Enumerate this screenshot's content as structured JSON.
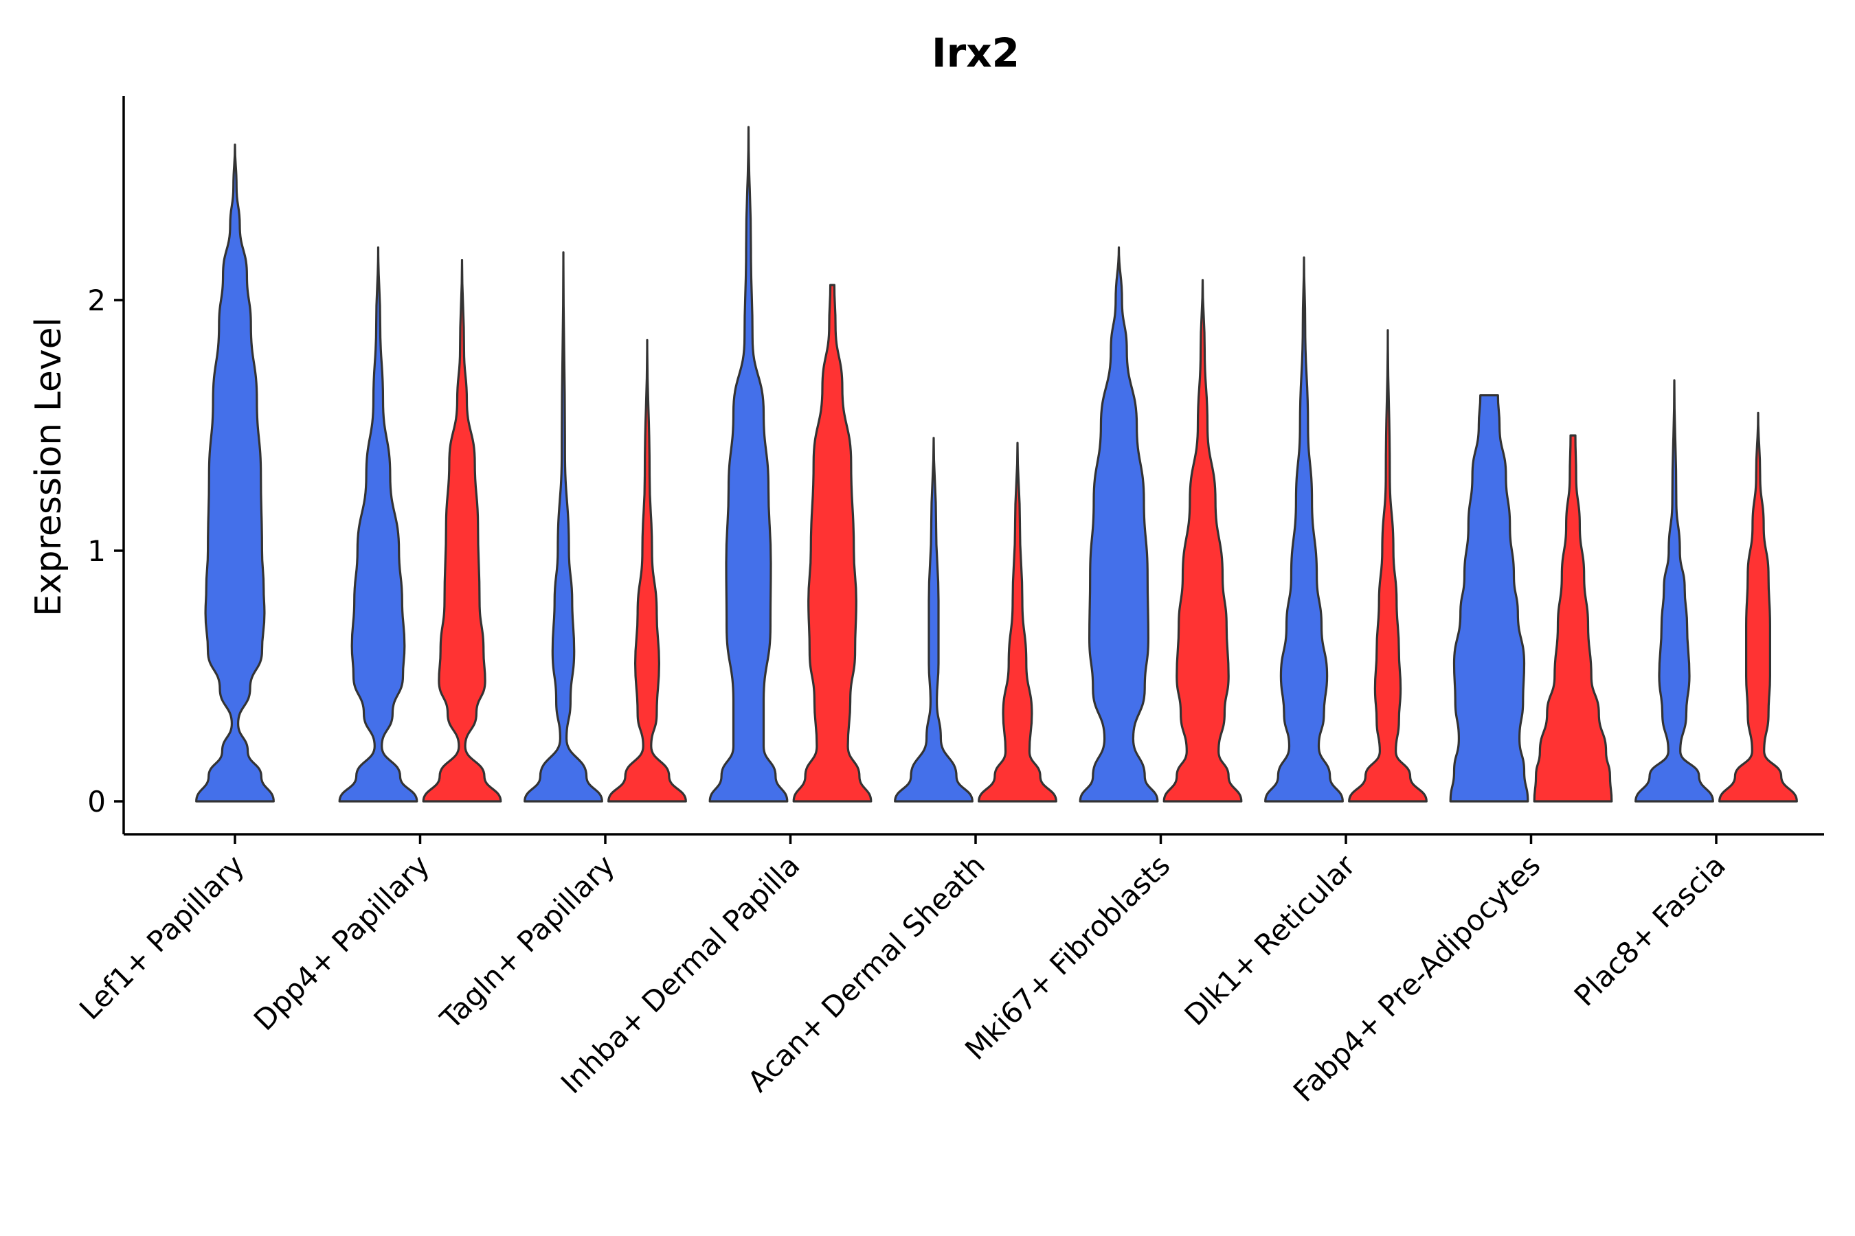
{
  "chart_data": {
    "type": "violin",
    "title": "Irx2",
    "xlabel": "",
    "ylabel": "Expression Level",
    "ylim": [
      -0.14,
      2.8
    ],
    "yticks": [
      0,
      1,
      2
    ],
    "colors": {
      "group1": "#4470ea",
      "group2": "#ff3333",
      "outline": "#333333"
    },
    "categories": [
      {
        "label": "Lef1+ Papillary",
        "violins": [
          {
            "group": "group1",
            "max": 2.62,
            "profile": [
              [
                0,
                0.97
              ],
              [
                0.1,
                0.66
              ],
              [
                0.2,
                0.32
              ],
              [
                0.31,
                0.08
              ],
              [
                0.45,
                0.38
              ],
              [
                0.6,
                0.68
              ],
              [
                0.75,
                0.74
              ],
              [
                0.85,
                0.72
              ],
              [
                1.0,
                0.68
              ],
              [
                1.3,
                0.65
              ],
              [
                1.6,
                0.55
              ],
              [
                1.9,
                0.4
              ],
              [
                2.1,
                0.3
              ],
              [
                2.3,
                0.12
              ],
              [
                2.45,
                0.04
              ],
              [
                2.62,
                0.0
              ]
            ]
          }
        ]
      },
      {
        "label": "Dpp4+ Papillary",
        "violins": [
          {
            "group": "group1",
            "max": 2.21,
            "profile": [
              [
                0,
                0.97
              ],
              [
                0.1,
                0.55
              ],
              [
                0.22,
                0.09
              ],
              [
                0.35,
                0.36
              ],
              [
                0.5,
                0.62
              ],
              [
                0.62,
                0.66
              ],
              [
                0.8,
                0.6
              ],
              [
                1.0,
                0.52
              ],
              [
                1.3,
                0.3
              ],
              [
                1.6,
                0.12
              ],
              [
                1.9,
                0.05
              ],
              [
                2.21,
                0.0
              ]
            ]
          },
          {
            "group": "group2",
            "max": 2.16,
            "profile": [
              [
                0,
                0.97
              ],
              [
                0.1,
                0.56
              ],
              [
                0.22,
                0.08
              ],
              [
                0.35,
                0.36
              ],
              [
                0.48,
                0.58
              ],
              [
                0.6,
                0.54
              ],
              [
                0.8,
                0.44
              ],
              [
                1.1,
                0.4
              ],
              [
                1.35,
                0.32
              ],
              [
                1.6,
                0.12
              ],
              [
                1.8,
                0.05
              ],
              [
                2.16,
                0.0
              ]
            ]
          }
        ]
      },
      {
        "label": "Tagln+ Papillary",
        "violins": [
          {
            "group": "group1",
            "max": 2.19,
            "profile": [
              [
                0,
                0.97
              ],
              [
                0.1,
                0.58
              ],
              [
                0.25,
                0.08
              ],
              [
                0.4,
                0.18
              ],
              [
                0.6,
                0.27
              ],
              [
                0.8,
                0.22
              ],
              [
                1.0,
                0.14
              ],
              [
                1.4,
                0.04
              ],
              [
                2.19,
                0.0
              ]
            ]
          },
          {
            "group": "group2",
            "max": 1.84,
            "profile": [
              [
                0,
                0.97
              ],
              [
                0.1,
                0.55
              ],
              [
                0.22,
                0.1
              ],
              [
                0.35,
                0.24
              ],
              [
                0.55,
                0.3
              ],
              [
                0.75,
                0.24
              ],
              [
                1.0,
                0.12
              ],
              [
                1.3,
                0.06
              ],
              [
                1.84,
                0.0
              ]
            ]
          }
        ]
      },
      {
        "label": "Inhba+ Dermal Papilla",
        "violins": [
          {
            "group": "group1",
            "max": 2.69,
            "profile": [
              [
                0,
                0.97
              ],
              [
                0.1,
                0.68
              ],
              [
                0.22,
                0.38
              ],
              [
                0.4,
                0.38
              ],
              [
                0.7,
                0.55
              ],
              [
                0.95,
                0.56
              ],
              [
                1.25,
                0.5
              ],
              [
                1.55,
                0.38
              ],
              [
                1.85,
                0.1
              ],
              [
                2.2,
                0.06
              ],
              [
                2.69,
                0.0
              ]
            ]
          },
          {
            "group": "group2",
            "max": 2.06,
            "profile": [
              [
                0,
                0.97
              ],
              [
                0.1,
                0.68
              ],
              [
                0.22,
                0.39
              ],
              [
                0.4,
                0.45
              ],
              [
                0.6,
                0.57
              ],
              [
                0.8,
                0.6
              ],
              [
                1.0,
                0.54
              ],
              [
                1.35,
                0.47
              ],
              [
                1.65,
                0.25
              ],
              [
                1.9,
                0.08
              ],
              [
                2.06,
                0.05
              ]
            ]
          }
        ]
      },
      {
        "label": "Acan+ Dermal Sheath",
        "violins": [
          {
            "group": "group1",
            "max": 1.45,
            "profile": [
              [
                0,
                0.97
              ],
              [
                0.1,
                0.57
              ],
              [
                0.25,
                0.18
              ],
              [
                0.4,
                0.08
              ],
              [
                0.55,
                0.12
              ],
              [
                0.8,
                0.12
              ],
              [
                1.1,
                0.06
              ],
              [
                1.45,
                0.0
              ]
            ]
          },
          {
            "group": "group2",
            "max": 1.43,
            "profile": [
              [
                0,
                0.97
              ],
              [
                0.1,
                0.57
              ],
              [
                0.2,
                0.3
              ],
              [
                0.35,
                0.36
              ],
              [
                0.55,
                0.22
              ],
              [
                0.8,
                0.12
              ],
              [
                1.1,
                0.06
              ],
              [
                1.43,
                0.0
              ]
            ]
          }
        ]
      },
      {
        "label": "Mki67+ Fibroblasts",
        "violins": [
          {
            "group": "group1",
            "max": 2.21,
            "profile": [
              [
                0,
                0.97
              ],
              [
                0.1,
                0.65
              ],
              [
                0.25,
                0.36
              ],
              [
                0.45,
                0.65
              ],
              [
                0.65,
                0.74
              ],
              [
                0.9,
                0.72
              ],
              [
                1.2,
                0.63
              ],
              [
                1.5,
                0.45
              ],
              [
                1.8,
                0.2
              ],
              [
                2.0,
                0.08
              ],
              [
                2.21,
                0.0
              ]
            ]
          },
          {
            "group": "group2",
            "max": 2.08,
            "profile": [
              [
                0,
                0.97
              ],
              [
                0.1,
                0.65
              ],
              [
                0.2,
                0.4
              ],
              [
                0.35,
                0.55
              ],
              [
                0.5,
                0.65
              ],
              [
                0.7,
                0.6
              ],
              [
                0.9,
                0.5
              ],
              [
                1.2,
                0.32
              ],
              [
                1.5,
                0.12
              ],
              [
                1.8,
                0.05
              ],
              [
                2.08,
                0.0
              ]
            ]
          }
        ]
      },
      {
        "label": "Dlk1+ Reticular",
        "violins": [
          {
            "group": "group1",
            "max": 2.17,
            "profile": [
              [
                0,
                0.97
              ],
              [
                0.1,
                0.65
              ],
              [
                0.22,
                0.37
              ],
              [
                0.35,
                0.5
              ],
              [
                0.5,
                0.58
              ],
              [
                0.7,
                0.44
              ],
              [
                0.9,
                0.32
              ],
              [
                1.2,
                0.2
              ],
              [
                1.5,
                0.1
              ],
              [
                1.9,
                0.03
              ],
              [
                2.17,
                0.0
              ]
            ]
          },
          {
            "group": "group2",
            "max": 1.88,
            "profile": [
              [
                0,
                0.97
              ],
              [
                0.1,
                0.56
              ],
              [
                0.2,
                0.2
              ],
              [
                0.32,
                0.28
              ],
              [
                0.45,
                0.32
              ],
              [
                0.6,
                0.28
              ],
              [
                0.8,
                0.22
              ],
              [
                1.0,
                0.14
              ],
              [
                1.3,
                0.05
              ],
              [
                1.88,
                0.0
              ]
            ]
          }
        ]
      },
      {
        "label": "Fabp4+ Pre-Adipocytes",
        "violins": [
          {
            "group": "group1",
            "max": 1.62,
            "profile": [
              [
                0,
                0.97
              ],
              [
                0.12,
                0.88
              ],
              [
                0.25,
                0.76
              ],
              [
                0.4,
                0.85
              ],
              [
                0.55,
                0.88
              ],
              [
                0.75,
                0.72
              ],
              [
                0.9,
                0.62
              ],
              [
                1.1,
                0.52
              ],
              [
                1.3,
                0.42
              ],
              [
                1.5,
                0.26
              ],
              [
                1.62,
                0.22
              ]
            ]
          },
          {
            "group": "group2",
            "max": 1.46,
            "profile": [
              [
                0,
                0.97
              ],
              [
                0.1,
                0.93
              ],
              [
                0.2,
                0.83
              ],
              [
                0.35,
                0.65
              ],
              [
                0.5,
                0.46
              ],
              [
                0.7,
                0.38
              ],
              [
                0.9,
                0.28
              ],
              [
                1.1,
                0.17
              ],
              [
                1.3,
                0.08
              ],
              [
                1.46,
                0.06
              ]
            ]
          }
        ]
      },
      {
        "label": "Plac8+ Fascia",
        "violins": [
          {
            "group": "group1",
            "max": 1.68,
            "profile": [
              [
                0,
                0.97
              ],
              [
                0.1,
                0.62
              ],
              [
                0.2,
                0.15
              ],
              [
                0.35,
                0.3
              ],
              [
                0.5,
                0.38
              ],
              [
                0.7,
                0.32
              ],
              [
                0.85,
                0.26
              ],
              [
                1.0,
                0.14
              ],
              [
                1.2,
                0.05
              ],
              [
                1.68,
                0.0
              ]
            ]
          },
          {
            "group": "group2",
            "max": 1.55,
            "profile": [
              [
                0,
                0.97
              ],
              [
                0.1,
                0.58
              ],
              [
                0.2,
                0.15
              ],
              [
                0.35,
                0.26
              ],
              [
                0.5,
                0.3
              ],
              [
                0.7,
                0.3
              ],
              [
                0.9,
                0.26
              ],
              [
                1.1,
                0.14
              ],
              [
                1.3,
                0.05
              ],
              [
                1.55,
                0.0
              ]
            ]
          }
        ]
      }
    ]
  }
}
